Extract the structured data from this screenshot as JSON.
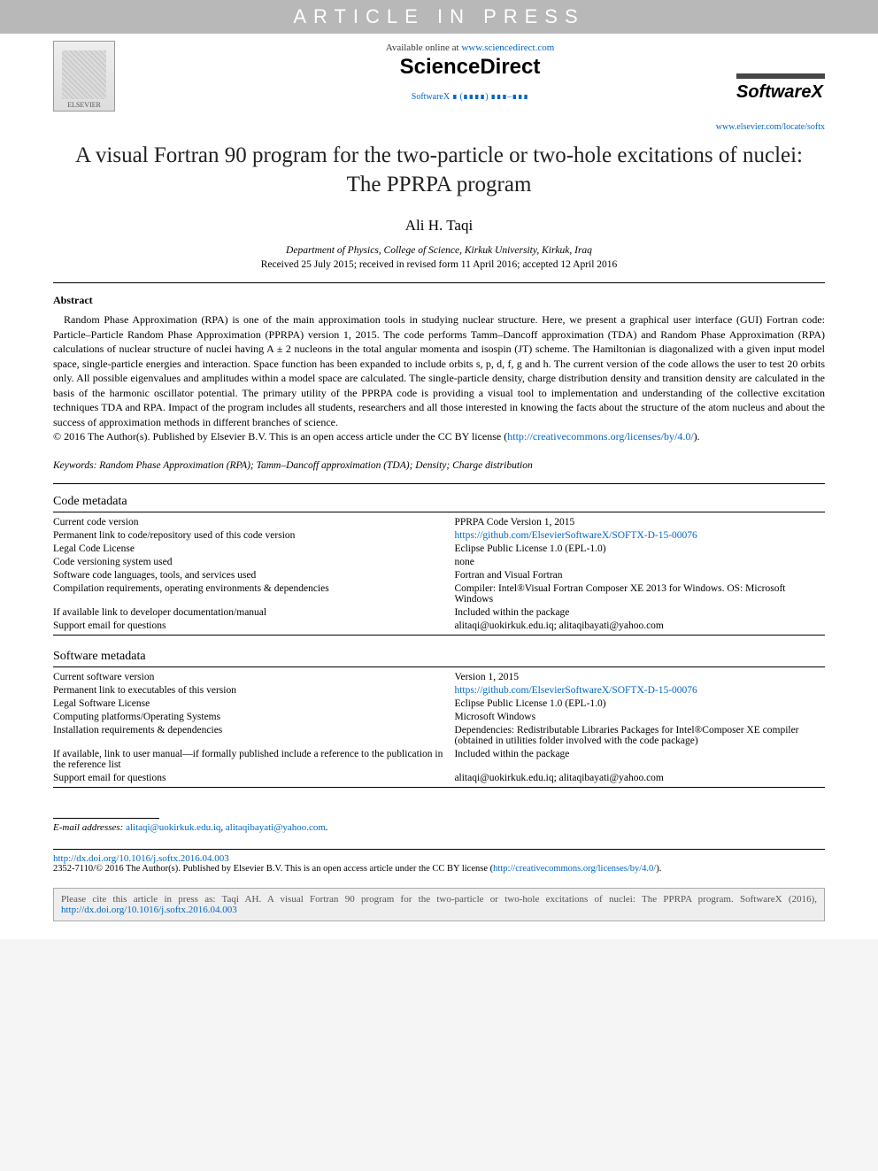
{
  "banner": "ARTICLE IN PRESS",
  "header": {
    "available_prefix": "Available online at ",
    "available_url": "www.sciencedirect.com",
    "science_direct": "ScienceDirect",
    "journal_ref": "SoftwareX ∎ (∎∎∎∎) ∎∎∎–∎∎∎",
    "elsevier_label": "ELSEVIER",
    "softwarex_logo": "SoftwareX",
    "locate_url": "www.elsevier.com/locate/softx"
  },
  "title": "A visual Fortran 90 program for the two-particle or two-hole excitations of nuclei: The PPRPA program",
  "author": "Ali H. Taqi",
  "affiliation": "Department of Physics, College of Science, Kirkuk University, Kirkuk, Iraq",
  "dates": "Received 25 July 2015; received in revised form 11 April 2016; accepted 12 April 2016",
  "abstract": {
    "heading": "Abstract",
    "body_pre": "Random Phase Approximation (RPA) is one of the main approximation tools in studying nuclear structure. Here, we present a graphical user interface (GUI) Fortran code: Particle–Particle Random Phase Approximation (PPRPA) version 1, 2015. The code performs Tamm–Dancoff approximation (TDA) and Random Phase Approximation (RPA) calculations of nuclear structure of nuclei having A ± 2 nucleons in the total angular momenta and isospin (JT) scheme. The Hamiltonian is diagonalized with a given input model space, single-particle energies and interaction. Space function has been expanded to include orbits s, p, d, f, g and h. The current version of the code allows the user to test 20 orbits only. All possible eigenvalues and amplitudes within a model space are calculated. The single-particle density, charge distribution density and transition density are calculated in the basis of the harmonic oscillator potential. The primary utility of the PPRPA code is providing a visual tool to implementation and understanding of the collective excitation techniques TDA and RPA. Impact of the program includes all students, researchers and all those interested in knowing the facts about the structure of the atom nucleus and about the success of approximation methods in different branches of science.",
    "copyright_pre": "© 2016 The Author(s). Published by Elsevier B.V. This is an open access article under the CC BY license (",
    "copyright_link": "http://creativecommons.org/licenses/by/4.0/",
    "copyright_post": ")."
  },
  "keywords": {
    "label": "Keywords:",
    "text": " Random Phase Approximation (RPA); Tamm–Dancoff approximation (TDA); Density; Charge distribution"
  },
  "code_meta": {
    "heading": "Code metadata",
    "rows": [
      {
        "k": "Current code version",
        "v": "PPRPA Code Version 1, 2015"
      },
      {
        "k": "Permanent link to code/repository used of this code version",
        "v": "https://github.com/ElsevierSoftwareX/SOFTX-D-15-00076",
        "link": true
      },
      {
        "k": "Legal Code License",
        "v": "Eclipse Public License 1.0 (EPL-1.0)"
      },
      {
        "k": "Code versioning system used",
        "v": "none"
      },
      {
        "k": "Software code languages, tools, and services used",
        "v": "Fortran and Visual Fortran"
      },
      {
        "k": "Compilation requirements, operating environments & dependencies",
        "v": "Compiler: Intel®Visual Fortran Composer XE 2013 for Windows. OS: Microsoft Windows"
      },
      {
        "k": "If available link to developer documentation/manual",
        "v": "Included within the package"
      },
      {
        "k": "Support email for questions",
        "v": "alitaqi@uokirkuk.edu.iq; alitaqibayati@yahoo.com"
      }
    ]
  },
  "soft_meta": {
    "heading": "Software metadata",
    "rows": [
      {
        "k": "Current software version",
        "v": "Version 1, 2015"
      },
      {
        "k": "Permanent link to executables of this version",
        "v": "https://github.com/ElsevierSoftwareX/SOFTX-D-15-00076",
        "link": true
      },
      {
        "k": "Legal Software License",
        "v": "Eclipse Public License 1.0 (EPL-1.0)"
      },
      {
        "k": "Computing platforms/Operating Systems",
        "v": "Microsoft Windows"
      },
      {
        "k": "Installation requirements & dependencies",
        "v": "Dependencies: Redistributable Libraries Packages for Intel®Composer XE compiler (obtained in utilities folder involved with the code package)"
      },
      {
        "k": "If available, link to user manual—if formally published include a reference to the publication in the reference list",
        "v": "Included within the package"
      },
      {
        "k": "Support email for questions",
        "v": "alitaqi@uokirkuk.edu.iq; alitaqibayati@yahoo.com"
      }
    ]
  },
  "footer": {
    "email_label": "E-mail addresses:",
    "email1": "alitaqi@uokirkuk.edu.iq",
    "email2": "alitaqibayati@yahoo.com",
    "doi": "http://dx.doi.org/10.1016/j.softx.2016.04.003",
    "copyright_pre": "2352-7110/© 2016 The Author(s). Published by Elsevier B.V. This is an open access article under the CC BY license (",
    "copyright_link": "http://creativecommons.org/licenses/by/4.0/",
    "copyright_post": ")."
  },
  "cite_box": {
    "pre": "Please cite this article in press as: Taqi AH. A visual Fortran 90 program for the two-particle or two-hole excitations of nuclei: The PPRPA program. SoftwareX (2016), ",
    "link": "http://dx.doi.org/10.1016/j.softx.2016.04.003"
  },
  "colors": {
    "link": "#0066cc",
    "banner_bg": "#b8b8b8",
    "cite_bg": "#eeeeee"
  }
}
